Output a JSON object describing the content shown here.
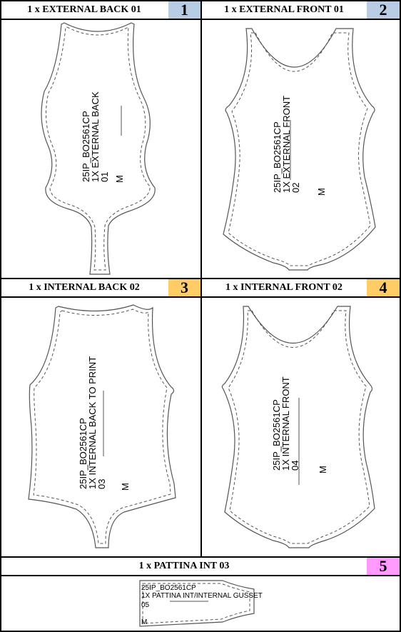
{
  "cells": [
    {
      "title": "1 x EXTERNAL BACK 01",
      "number": "1",
      "color": "#b8cce4",
      "label": {
        "code": "25IP_BO2561CP",
        "name": "1X EXTERNAL BACK",
        "seq": "01",
        "size": "M"
      }
    },
    {
      "title": "1 x EXTERNAL FRONT 01",
      "number": "2",
      "color": "#b8cce4",
      "label": {
        "code": "25IP_BO2561CP",
        "name": "1X EXTERNAL FRONT",
        "seq": "02",
        "size": "M"
      }
    },
    {
      "title": "1 x INTERNAL BACK 02",
      "number": "3",
      "color": "#ffcc66",
      "label": {
        "code": "25IP_BO2561CP",
        "name": "1X INTERNAL BACK TO PRINT",
        "seq": "03",
        "size": "M"
      }
    },
    {
      "title": "1 x INTERNAL FRONT 02",
      "number": "4",
      "color": "#ffcc66",
      "label": {
        "code": "25IP_BO2561CP",
        "name": "1X INTERNAL FRONT",
        "seq": "04",
        "size": "M"
      }
    },
    {
      "title": "1 x PATTINA INT 03",
      "number": "5",
      "color": "#ff99ff",
      "label": {
        "code": "25IP_BO2561CP",
        "name": "1X PATTINA INT/INTERNAL GUSSET",
        "seq": "05",
        "size": "M"
      }
    }
  ]
}
